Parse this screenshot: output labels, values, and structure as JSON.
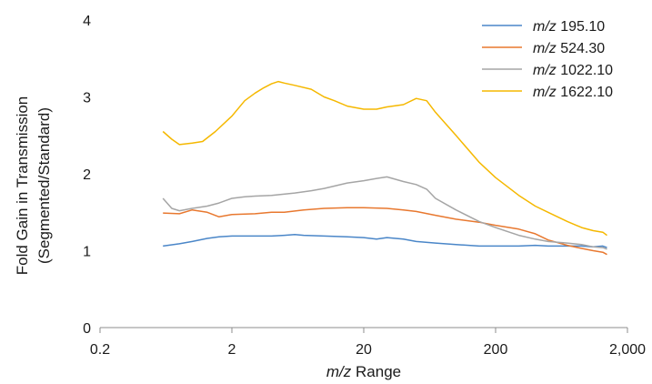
{
  "chart_data": {
    "type": "line",
    "x_scale": "log",
    "xlabel": {
      "italic": "m/z",
      "rest": " Range"
    },
    "ylabel": [
      "Fold Gain in Transmission",
      "(Segmented/Standard)"
    ],
    "xlim": [
      0.2,
      2000
    ],
    "ylim": [
      0,
      4
    ],
    "x_ticks": [
      {
        "value": 0.2,
        "label": "0.2"
      },
      {
        "value": 2,
        "label": "2"
      },
      {
        "value": 20,
        "label": "20"
      },
      {
        "value": 200,
        "label": "200"
      },
      {
        "value": 2000,
        "label": "2,000"
      }
    ],
    "y_ticks": [
      {
        "value": 0,
        "label": "0"
      },
      {
        "value": 1,
        "label": "1"
      },
      {
        "value": 2,
        "label": "2"
      },
      {
        "value": 3,
        "label": "3"
      },
      {
        "value": 4,
        "label": "4"
      }
    ],
    "grid": false,
    "legend_position": "top-right",
    "series": [
      {
        "name_prefix": "m/z",
        "name": "195.10",
        "color": "#4a86c8",
        "points": [
          [
            0.6,
            1.06
          ],
          [
            0.8,
            1.09
          ],
          [
            1.0,
            1.12
          ],
          [
            1.3,
            1.16
          ],
          [
            1.6,
            1.18
          ],
          [
            2.0,
            1.19
          ],
          [
            3.0,
            1.19
          ],
          [
            4.0,
            1.19
          ],
          [
            5.0,
            1.2
          ],
          [
            6.0,
            1.21
          ],
          [
            7.0,
            1.2
          ],
          [
            10,
            1.19
          ],
          [
            15,
            1.18
          ],
          [
            20,
            1.17
          ],
          [
            25,
            1.15
          ],
          [
            30,
            1.17
          ],
          [
            40,
            1.15
          ],
          [
            50,
            1.12
          ],
          [
            70,
            1.1
          ],
          [
            100,
            1.08
          ],
          [
            150,
            1.06
          ],
          [
            200,
            1.06
          ],
          [
            300,
            1.06
          ],
          [
            400,
            1.07
          ],
          [
            500,
            1.06
          ],
          [
            700,
            1.06
          ],
          [
            900,
            1.06
          ],
          [
            1100,
            1.05
          ],
          [
            1300,
            1.06
          ],
          [
            1400,
            1.04
          ]
        ]
      },
      {
        "name_prefix": "m/z",
        "name": "524.30",
        "color": "#e8782f",
        "points": [
          [
            0.6,
            1.49
          ],
          [
            0.8,
            1.48
          ],
          [
            1.0,
            1.53
          ],
          [
            1.3,
            1.5
          ],
          [
            1.6,
            1.44
          ],
          [
            2.0,
            1.47
          ],
          [
            3.0,
            1.48
          ],
          [
            4.0,
            1.5
          ],
          [
            5.0,
            1.5
          ],
          [
            7.0,
            1.53
          ],
          [
            10,
            1.55
          ],
          [
            15,
            1.56
          ],
          [
            20,
            1.56
          ],
          [
            30,
            1.55
          ],
          [
            40,
            1.53
          ],
          [
            50,
            1.51
          ],
          [
            70,
            1.46
          ],
          [
            100,
            1.41
          ],
          [
            150,
            1.37
          ],
          [
            200,
            1.33
          ],
          [
            300,
            1.28
          ],
          [
            400,
            1.22
          ],
          [
            500,
            1.14
          ],
          [
            700,
            1.07
          ],
          [
            900,
            1.03
          ],
          [
            1100,
            1.0
          ],
          [
            1300,
            0.98
          ],
          [
            1400,
            0.95
          ]
        ]
      },
      {
        "name_prefix": "m/z",
        "name": "1022.10",
        "color": "#a5a5a5",
        "points": [
          [
            0.6,
            1.68
          ],
          [
            0.7,
            1.55
          ],
          [
            0.8,
            1.52
          ],
          [
            1.0,
            1.55
          ],
          [
            1.3,
            1.58
          ],
          [
            1.6,
            1.62
          ],
          [
            2.0,
            1.68
          ],
          [
            2.5,
            1.7
          ],
          [
            3.0,
            1.71
          ],
          [
            4.0,
            1.72
          ],
          [
            6.0,
            1.75
          ],
          [
            8.0,
            1.78
          ],
          [
            10,
            1.81
          ],
          [
            15,
            1.88
          ],
          [
            20,
            1.91
          ],
          [
            25,
            1.94
          ],
          [
            30,
            1.96
          ],
          [
            40,
            1.9
          ],
          [
            50,
            1.86
          ],
          [
            60,
            1.8
          ],
          [
            70,
            1.68
          ],
          [
            100,
            1.53
          ],
          [
            150,
            1.38
          ],
          [
            200,
            1.3
          ],
          [
            300,
            1.2
          ],
          [
            400,
            1.15
          ],
          [
            500,
            1.12
          ],
          [
            700,
            1.1
          ],
          [
            900,
            1.08
          ],
          [
            1100,
            1.05
          ],
          [
            1300,
            1.04
          ],
          [
            1400,
            1.02
          ]
        ]
      },
      {
        "name_prefix": "m/z",
        "name": "1622.10",
        "color": "#f5b800",
        "points": [
          [
            0.6,
            2.55
          ],
          [
            0.7,
            2.45
          ],
          [
            0.8,
            2.38
          ],
          [
            1.0,
            2.4
          ],
          [
            1.2,
            2.42
          ],
          [
            1.5,
            2.55
          ],
          [
            2.0,
            2.75
          ],
          [
            2.5,
            2.95
          ],
          [
            3.0,
            3.05
          ],
          [
            3.5,
            3.12
          ],
          [
            4.0,
            3.17
          ],
          [
            4.5,
            3.2
          ],
          [
            5.0,
            3.18
          ],
          [
            6.0,
            3.15
          ],
          [
            8.0,
            3.1
          ],
          [
            10,
            3.0
          ],
          [
            12,
            2.95
          ],
          [
            15,
            2.88
          ],
          [
            20,
            2.84
          ],
          [
            25,
            2.84
          ],
          [
            30,
            2.87
          ],
          [
            40,
            2.9
          ],
          [
            50,
            2.98
          ],
          [
            60,
            2.95
          ],
          [
            70,
            2.8
          ],
          [
            100,
            2.5
          ],
          [
            150,
            2.15
          ],
          [
            200,
            1.95
          ],
          [
            300,
            1.72
          ],
          [
            400,
            1.58
          ],
          [
            500,
            1.5
          ],
          [
            700,
            1.38
          ],
          [
            900,
            1.3
          ],
          [
            1100,
            1.26
          ],
          [
            1300,
            1.24
          ],
          [
            1400,
            1.2
          ]
        ]
      }
    ]
  }
}
